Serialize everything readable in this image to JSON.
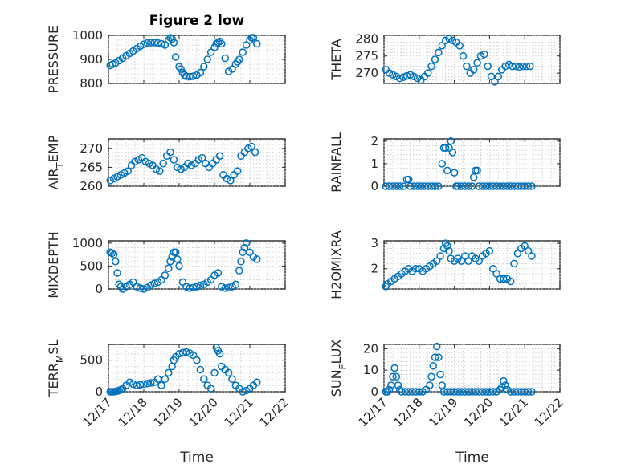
{
  "figure": {
    "title": "Figure 2 low",
    "color": "#0072BD",
    "xticks": [
      "12/17",
      "12/18",
      "12/19",
      "12/20",
      "12/21",
      "12/22"
    ],
    "xlabel": "Time"
  },
  "chart_data": [
    {
      "type": "scatter",
      "id": "pressure",
      "ylabel_parts": [
        {
          "t": "PRESSURE"
        }
      ],
      "xlim": [
        0,
        5
      ],
      "ylim": [
        800,
        1000
      ],
      "yticks": [
        800,
        900,
        1000
      ],
      "grid": true,
      "x": [
        0.05,
        0.12,
        0.2,
        0.3,
        0.4,
        0.5,
        0.6,
        0.7,
        0.8,
        0.9,
        1.0,
        1.1,
        1.2,
        1.3,
        1.4,
        1.5,
        1.6,
        1.7,
        1.75,
        1.8,
        1.85,
        1.9,
        2.0,
        2.05,
        2.1,
        2.15,
        2.2,
        2.3,
        2.4,
        2.5,
        2.6,
        2.7,
        2.8,
        2.9,
        3.0,
        3.05,
        3.1,
        3.15,
        3.2,
        3.3,
        3.4,
        3.5,
        3.6,
        3.65,
        3.7,
        3.8,
        3.9,
        4.0,
        4.05,
        4.1,
        4.2
      ],
      "y": [
        875,
        880,
        885,
        895,
        905,
        915,
        925,
        935,
        945,
        955,
        963,
        968,
        970,
        970,
        968,
        965,
        960,
        980,
        990,
        985,
        970,
        910,
        870,
        860,
        845,
        835,
        830,
        828,
        830,
        835,
        845,
        870,
        900,
        930,
        950,
        965,
        970,
        975,
        965,
        905,
        850,
        860,
        880,
        890,
        900,
        930,
        960,
        980,
        990,
        990,
        965
      ]
    },
    {
      "type": "scatter",
      "id": "theta",
      "ylabel_parts": [
        {
          "t": "THETA"
        }
      ],
      "xlim": [
        0,
        5
      ],
      "ylim": [
        267,
        281
      ],
      "yticks": [
        270,
        275,
        280
      ],
      "grid": true,
      "x": [
        0.05,
        0.15,
        0.25,
        0.35,
        0.45,
        0.55,
        0.65,
        0.75,
        0.85,
        0.95,
        1.05,
        1.15,
        1.25,
        1.35,
        1.45,
        1.55,
        1.65,
        1.75,
        1.85,
        1.95,
        2.05,
        2.15,
        2.25,
        2.35,
        2.45,
        2.55,
        2.65,
        2.75,
        2.85,
        2.95,
        3.05,
        3.15,
        3.25,
        3.35,
        3.45,
        3.55,
        3.65,
        3.75,
        3.85,
        3.95,
        4.05,
        4.15
      ],
      "y": [
        271,
        270,
        269.5,
        269,
        268.5,
        268.8,
        269.2,
        269.5,
        269,
        268.5,
        268,
        269,
        270,
        272,
        274,
        276,
        278,
        279.5,
        280,
        279.5,
        279,
        278,
        275,
        272,
        270,
        271,
        273,
        275,
        275.5,
        272,
        269,
        267.5,
        269,
        271,
        272,
        272.5,
        272,
        272,
        271.8,
        272,
        272,
        272
      ]
    },
    {
      "type": "scatter",
      "id": "air_temp",
      "ylabel_parts": [
        {
          "t": "AIR"
        },
        {
          "t": "T",
          "sub": true
        },
        {
          "t": "EMP"
        }
      ],
      "xlim": [
        0,
        5
      ],
      "ylim": [
        260,
        272.5
      ],
      "yticks": [
        260,
        265,
        270
      ],
      "grid": true,
      "x": [
        0.05,
        0.15,
        0.25,
        0.35,
        0.45,
        0.55,
        0.65,
        0.75,
        0.85,
        0.95,
        1.05,
        1.15,
        1.25,
        1.35,
        1.45,
        1.55,
        1.65,
        1.75,
        1.85,
        1.95,
        2.05,
        2.15,
        2.25,
        2.35,
        2.45,
        2.55,
        2.65,
        2.75,
        2.85,
        2.95,
        3.05,
        3.15,
        3.25,
        3.35,
        3.45,
        3.55,
        3.65,
        3.75,
        3.85,
        3.95,
        4.05,
        4.15
      ],
      "y": [
        261.5,
        262,
        262.5,
        263,
        263.5,
        264,
        265.5,
        266.5,
        267,
        267.5,
        266.5,
        266,
        265.5,
        264.5,
        264,
        266,
        268,
        269,
        267,
        265,
        264.5,
        265,
        266,
        265.5,
        266,
        267,
        267.5,
        266,
        265,
        266,
        267,
        268,
        263,
        262,
        261.5,
        263,
        264,
        268,
        269,
        270,
        270.5,
        269
      ]
    },
    {
      "type": "scatter",
      "id": "rainfall",
      "ylabel_parts": [
        {
          "t": "RAINFALL"
        }
      ],
      "xlim": [
        0,
        5
      ],
      "ylim": [
        0,
        2.1
      ],
      "yticks": [
        0,
        1,
        2
      ],
      "grid": true,
      "x": [
        0.05,
        0.15,
        0.25,
        0.35,
        0.45,
        0.55,
        0.65,
        0.7,
        0.75,
        0.85,
        0.95,
        1.05,
        1.15,
        1.25,
        1.35,
        1.45,
        1.55,
        1.65,
        1.7,
        1.75,
        1.8,
        1.85,
        1.9,
        1.95,
        2.0,
        2.05,
        2.1,
        2.2,
        2.3,
        2.4,
        2.5,
        2.55,
        2.6,
        2.65,
        2.7,
        2.8,
        2.9,
        3.0,
        3.1,
        3.2,
        3.3,
        3.4,
        3.5,
        3.6,
        3.7,
        3.8,
        3.9,
        4.0,
        4.1,
        4.2
      ],
      "y": [
        0,
        0,
        0,
        0,
        0,
        0,
        0.3,
        0.3,
        0,
        0,
        0,
        0,
        0,
        0,
        0,
        0,
        0,
        1.0,
        1.7,
        1.7,
        0.7,
        1.7,
        2.0,
        1.5,
        0.6,
        0,
        0,
        0,
        0,
        0,
        0,
        0.4,
        0.7,
        0.7,
        0,
        0,
        0,
        0,
        0,
        0,
        0,
        0,
        0,
        0,
        0,
        0,
        0,
        0,
        0,
        0
      ]
    },
    {
      "type": "scatter",
      "id": "mixdepth",
      "ylabel_parts": [
        {
          "t": "MIXDEPTH"
        }
      ],
      "xlim": [
        0,
        5
      ],
      "ylim": [
        0,
        1050
      ],
      "yticks": [
        0,
        500,
        1000
      ],
      "grid": true,
      "x": [
        0.05,
        0.1,
        0.15,
        0.2,
        0.25,
        0.3,
        0.35,
        0.4,
        0.5,
        0.6,
        0.7,
        0.8,
        0.9,
        1.0,
        1.1,
        1.2,
        1.3,
        1.4,
        1.5,
        1.6,
        1.7,
        1.75,
        1.8,
        1.85,
        1.9,
        1.95,
        2.0,
        2.1,
        2.2,
        2.3,
        2.4,
        2.5,
        2.6,
        2.7,
        2.8,
        2.9,
        3.0,
        3.1,
        3.2,
        3.3,
        3.4,
        3.5,
        3.6,
        3.7,
        3.75,
        3.8,
        3.85,
        3.9,
        4.0,
        4.1,
        4.2
      ],
      "y": [
        800,
        780,
        750,
        600,
        350,
        100,
        50,
        0,
        50,
        100,
        150,
        50,
        20,
        0,
        30,
        80,
        120,
        150,
        200,
        300,
        450,
        600,
        700,
        800,
        800,
        650,
        500,
        150,
        50,
        20,
        30,
        50,
        80,
        100,
        150,
        200,
        300,
        350,
        50,
        20,
        30,
        50,
        100,
        400,
        600,
        800,
        900,
        1000,
        800,
        700,
        650
      ]
    },
    {
      "type": "scatter",
      "id": "h2omixra",
      "ylabel_parts": [
        {
          "t": "H2OMIXRA"
        }
      ],
      "xlim": [
        0,
        5
      ],
      "ylim": [
        1.2,
        3.1
      ],
      "yticks": [
        2,
        3
      ],
      "grid": true,
      "x": [
        0.05,
        0.1,
        0.2,
        0.3,
        0.4,
        0.5,
        0.6,
        0.7,
        0.8,
        0.9,
        1.0,
        1.1,
        1.2,
        1.3,
        1.4,
        1.5,
        1.6,
        1.7,
        1.75,
        1.8,
        1.85,
        1.9,
        2.0,
        2.1,
        2.2,
        2.3,
        2.4,
        2.5,
        2.6,
        2.7,
        2.8,
        2.9,
        3.0,
        3.1,
        3.2,
        3.3,
        3.4,
        3.5,
        3.6,
        3.7,
        3.8,
        3.9,
        4.0,
        4.1,
        4.2
      ],
      "y": [
        1.3,
        1.4,
        1.5,
        1.6,
        1.7,
        1.8,
        1.9,
        2.0,
        1.9,
        2.0,
        2.0,
        1.9,
        2.0,
        2.1,
        2.2,
        2.3,
        2.5,
        2.8,
        3.0,
        2.9,
        2.7,
        2.4,
        2.3,
        2.4,
        2.3,
        2.5,
        2.3,
        2.5,
        2.4,
        2.3,
        2.5,
        2.6,
        2.7,
        2.0,
        1.8,
        1.6,
        1.6,
        1.6,
        1.5,
        2.2,
        2.6,
        2.8,
        2.9,
        2.7,
        2.5
      ]
    },
    {
      "type": "scatter",
      "id": "terr_msl",
      "ylabel_parts": [
        {
          "t": "TERR"
        },
        {
          "t": "M",
          "sub": true
        },
        {
          "t": "SL"
        }
      ],
      "xlim": [
        0,
        5
      ],
      "ylim": [
        0,
        750
      ],
      "yticks": [
        0,
        500
      ],
      "grid": true,
      "x": [
        0.05,
        0.1,
        0.15,
        0.2,
        0.25,
        0.3,
        0.35,
        0.4,
        0.5,
        0.6,
        0.7,
        0.8,
        0.9,
        1.0,
        1.1,
        1.2,
        1.3,
        1.4,
        1.5,
        1.6,
        1.7,
        1.8,
        1.85,
        1.9,
        2.0,
        2.1,
        2.2,
        2.3,
        2.4,
        2.5,
        2.6,
        2.7,
        2.8,
        2.9,
        3.0,
        3.05,
        3.1,
        3.15,
        3.2,
        3.3,
        3.4,
        3.5,
        3.6,
        3.7,
        3.8,
        3.9,
        4.0,
        4.1,
        4.2
      ],
      "y": [
        0,
        0,
        0,
        5,
        10,
        20,
        30,
        50,
        100,
        150,
        120,
        100,
        110,
        120,
        130,
        140,
        150,
        200,
        100,
        200,
        300,
        400,
        500,
        550,
        600,
        620,
        630,
        610,
        580,
        500,
        350,
        200,
        100,
        50,
        300,
        700,
        650,
        600,
        400,
        350,
        300,
        200,
        100,
        50,
        0,
        20,
        50,
        100,
        150
      ]
    },
    {
      "type": "scatter",
      "id": "sun_flux",
      "ylabel_parts": [
        {
          "t": "SUN"
        },
        {
          "t": "F",
          "sub": true
        },
        {
          "t": "LUX"
        }
      ],
      "xlim": [
        0,
        5
      ],
      "ylim": [
        0,
        22
      ],
      "yticks": [
        0,
        10,
        20
      ],
      "grid": true,
      "x": [
        0.05,
        0.1,
        0.15,
        0.2,
        0.25,
        0.3,
        0.35,
        0.4,
        0.45,
        0.5,
        0.6,
        0.7,
        0.8,
        0.9,
        1.0,
        1.1,
        1.2,
        1.3,
        1.35,
        1.4,
        1.45,
        1.5,
        1.55,
        1.6,
        1.65,
        1.7,
        1.8,
        1.9,
        2.0,
        2.1,
        2.2,
        2.3,
        2.4,
        2.5,
        2.6,
        2.7,
        2.8,
        2.9,
        3.0,
        3.1,
        3.2,
        3.3,
        3.35,
        3.4,
        3.45,
        3.5,
        3.6,
        3.7,
        3.8,
        3.9,
        4.0,
        4.1,
        4.2
      ],
      "y": [
        0,
        0,
        1,
        3,
        7,
        11,
        7,
        3,
        1,
        0,
        0,
        0,
        0,
        0,
        0,
        0,
        1,
        3,
        7,
        12,
        16,
        21,
        16,
        8,
        3,
        0,
        0,
        0,
        0,
        0,
        0,
        0,
        0,
        0,
        0,
        0,
        0,
        0,
        0,
        0,
        0,
        1,
        2,
        5,
        3,
        1,
        0,
        0,
        0,
        0,
        0,
        0,
        0
      ]
    }
  ]
}
